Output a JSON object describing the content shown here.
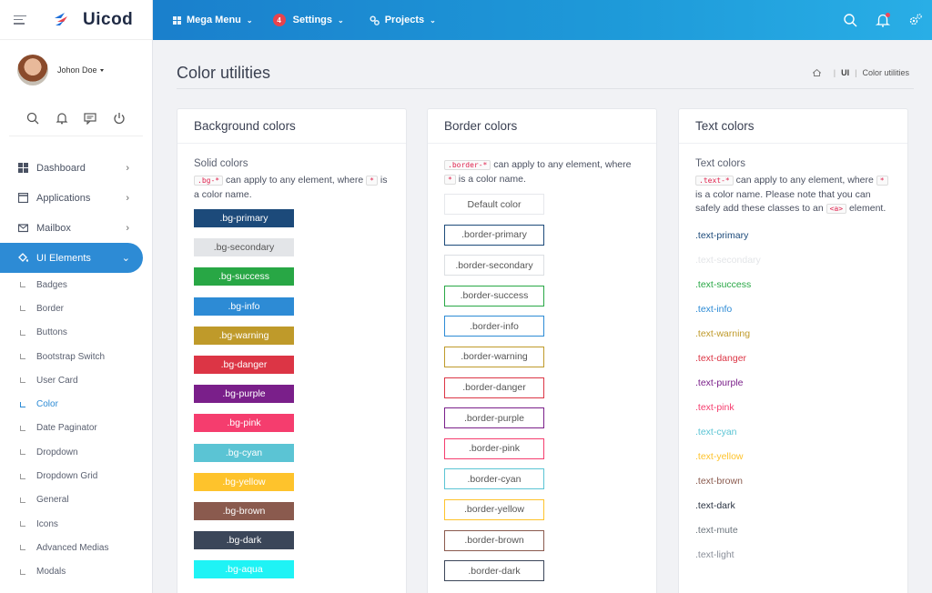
{
  "brand": {
    "name": "Uicod"
  },
  "user": {
    "name": "Johon Doe"
  },
  "quick_icons": [
    "search-icon",
    "bell-icon",
    "chat-icon",
    "power-icon"
  ],
  "sidebar": {
    "items": [
      {
        "label": "Dashboard",
        "icon": "dashboard-icon"
      },
      {
        "label": "Applications",
        "icon": "window-icon"
      },
      {
        "label": "Mailbox",
        "icon": "mail-icon"
      },
      {
        "label": "UI Elements",
        "icon": "paint-bucket-icon"
      }
    ],
    "sub_items": [
      "Badges",
      "Border",
      "Buttons",
      "Bootstrap Switch",
      "User Card",
      "Color",
      "Date Paginator",
      "Dropdown",
      "Dropdown Grid",
      "General",
      "Icons",
      "Advanced Medias",
      "Modals"
    ]
  },
  "topbar": {
    "menus": [
      {
        "label": "Mega Menu",
        "icon": "grid-icon"
      },
      {
        "label": "Settings",
        "badge": "4"
      },
      {
        "label": "Projects",
        "icon": "cogs-icon"
      }
    ],
    "right_icons": [
      "search-icon",
      "bell-icon",
      "settings-gear-icon"
    ]
  },
  "page": {
    "title": "Color utilities",
    "breadcrumb": [
      "UI",
      "Color utilities"
    ]
  },
  "bg_card": {
    "title": "Background colors",
    "subtitle": "Solid colors",
    "code1": ".bg-*",
    "text1": "can apply to any element, where",
    "code2": "*",
    "text2": "is a color name.",
    "swatches": [
      {
        "label": ".bg-primary",
        "color": "#1c4a7a",
        "text": "#ffffff"
      },
      {
        "label": ".bg-secondary",
        "color": "#e3e5e8",
        "text": "#555555"
      },
      {
        "label": ".bg-success",
        "color": "#28a745",
        "text": "#ffffff"
      },
      {
        "label": ".bg-info",
        "color": "#2d8bd5",
        "text": "#ffffff"
      },
      {
        "label": ".bg-warning",
        "color": "#bf9a2a",
        "text": "#ffffff"
      },
      {
        "label": ".bg-danger",
        "color": "#dc3545",
        "text": "#ffffff"
      },
      {
        "label": ".bg-purple",
        "color": "#7a1f8a",
        "text": "#ffffff"
      },
      {
        "label": ".bg-pink",
        "color": "#f53d6e",
        "text": "#ffffff"
      },
      {
        "label": ".bg-cyan",
        "color": "#5bc4d4",
        "text": "#ffffff"
      },
      {
        "label": ".bg-yellow",
        "color": "#fec32c",
        "text": "#ffffff"
      },
      {
        "label": ".bg-brown",
        "color": "#8a5a4e",
        "text": "#ffffff"
      },
      {
        "label": ".bg-dark",
        "color": "#3b4659",
        "text": "#ffffff"
      },
      {
        "label": ".bg-aqua",
        "color": "#1ff3f5",
        "text": "#ffffff"
      }
    ]
  },
  "border_card": {
    "title": "Border colors",
    "code1": ".border-*",
    "text1": "can apply to any element,",
    "text1b": "where",
    "code2": "*",
    "text2": "is a color name.",
    "boxes": [
      {
        "label": "Default color",
        "color": "#e6e8ec"
      },
      {
        "label": ".border-primary",
        "color": "#1c4a7a"
      },
      {
        "label": ".border-secondary",
        "color": "#dcdfe3"
      },
      {
        "label": ".border-success",
        "color": "#28a745"
      },
      {
        "label": ".border-info",
        "color": "#2d8bd5"
      },
      {
        "label": ".border-warning",
        "color": "#bf9a2a"
      },
      {
        "label": ".border-danger",
        "color": "#dc3545"
      },
      {
        "label": ".border-purple",
        "color": "#7a1f8a"
      },
      {
        "label": ".border-pink",
        "color": "#f53d6e"
      },
      {
        "label": ".border-cyan",
        "color": "#5bc4d4"
      },
      {
        "label": ".border-yellow",
        "color": "#fec32c"
      },
      {
        "label": ".border-brown",
        "color": "#8a5a4e"
      },
      {
        "label": ".border-dark",
        "color": "#3b4659"
      }
    ]
  },
  "text_card": {
    "title": "Text colors",
    "subtitle": "Text colors",
    "code1": ".text-*",
    "text1": "can apply to any element,",
    "text1b": "where",
    "code2": "*",
    "text2": "is a color name. Please note that you can safely add these classes to an",
    "code3": "<a>",
    "text3": "element.",
    "items": [
      {
        "label": ".text-primary",
        "color": "#1c4a7a"
      },
      {
        "label": ".text-secondary",
        "color": "#e3e5e8"
      },
      {
        "label": ".text-success",
        "color": "#28a745"
      },
      {
        "label": ".text-info",
        "color": "#2d8bd5"
      },
      {
        "label": ".text-warning",
        "color": "#bf9a2a"
      },
      {
        "label": ".text-danger",
        "color": "#dc3545"
      },
      {
        "label": ".text-purple",
        "color": "#7a1f8a"
      },
      {
        "label": ".text-pink",
        "color": "#f53d6e"
      },
      {
        "label": ".text-cyan",
        "color": "#5bc4d4"
      },
      {
        "label": ".text-yellow",
        "color": "#fec32c"
      },
      {
        "label": ".text-brown",
        "color": "#8a5a4e"
      },
      {
        "label": ".text-dark",
        "color": "#2a3342"
      },
      {
        "label": ".text-mute",
        "color": "#6c757d"
      },
      {
        "label": ".text-light",
        "color": "#8a8f99"
      }
    ]
  }
}
